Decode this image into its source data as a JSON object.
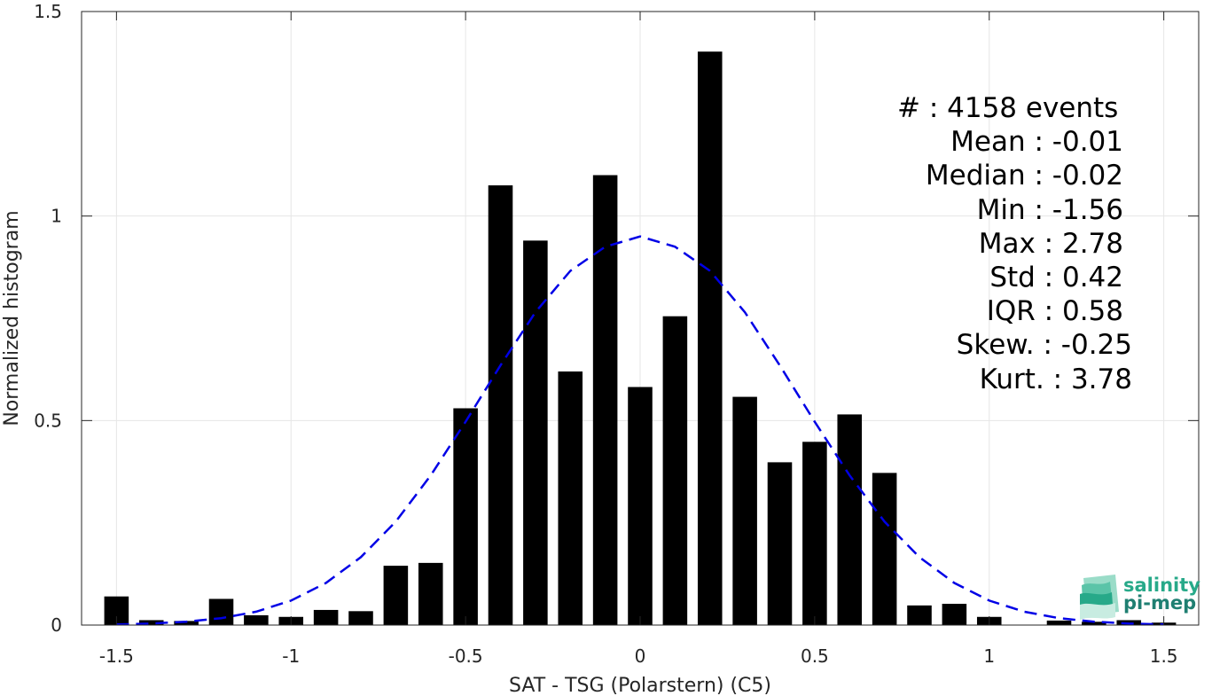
{
  "chart_data": {
    "type": "bar",
    "xlabel": "SAT - TSG (Polarstern) (C5)",
    "ylabel": "Normalized histogram",
    "xlim": [
      -1.6,
      1.6
    ],
    "ylim": [
      0,
      1.5
    ],
    "x_ticks": [
      -1.5,
      -1,
      -0.5,
      0,
      0.5,
      1,
      1.5
    ],
    "x_tick_labels": [
      "-1.5",
      "-1",
      "-0.5",
      "0",
      "0.5",
      "1",
      "1.5"
    ],
    "y_ticks": [
      0,
      0.5,
      1,
      1.5
    ],
    "y_tick_labels": [
      "0",
      "0.5",
      "1",
      "1.5"
    ],
    "grid": true,
    "bar_width": 0.07,
    "bar_color": "#000000",
    "x": [
      -1.5,
      -1.4,
      -1.3,
      -1.2,
      -1.1,
      -1.0,
      -0.9,
      -0.8,
      -0.7,
      -0.6,
      -0.5,
      -0.4,
      -0.3,
      -0.2,
      -0.1,
      0.0,
      0.1,
      0.2,
      0.3,
      0.4,
      0.5,
      0.6,
      0.7,
      0.8,
      0.9,
      1.0,
      1.1,
      1.2,
      1.3,
      1.4,
      1.5
    ],
    "values": [
      0.07,
      0.012,
      0.01,
      0.064,
      0.024,
      0.02,
      0.037,
      0.034,
      0.145,
      0.152,
      0.53,
      1.075,
      0.94,
      0.62,
      1.1,
      0.582,
      0.755,
      1.402,
      0.558,
      0.398,
      0.448,
      0.515,
      0.372,
      0.048,
      0.052,
      0.02,
      0,
      0.011,
      0.008,
      0.012,
      0.006
    ],
    "fit_curve": {
      "style": "dashed",
      "color": "#0000e6",
      "x": [
        -1.5,
        -1.4,
        -1.3,
        -1.2,
        -1.1,
        -1.0,
        -0.9,
        -0.8,
        -0.7,
        -0.6,
        -0.5,
        -0.4,
        -0.3,
        -0.2,
        -0.1,
        0.0,
        0.1,
        0.2,
        0.3,
        0.4,
        0.5,
        0.6,
        0.7,
        0.8,
        0.9,
        1.0,
        1.1,
        1.2,
        1.3,
        1.4,
        1.5
      ],
      "y": [
        0.0016,
        0.0036,
        0.0082,
        0.0169,
        0.0328,
        0.0598,
        0.103,
        0.166,
        0.253,
        0.366,
        0.497,
        0.635,
        0.765,
        0.866,
        0.925,
        0.95,
        0.925,
        0.866,
        0.765,
        0.635,
        0.497,
        0.366,
        0.253,
        0.166,
        0.103,
        0.0598,
        0.0328,
        0.0169,
        0.0082,
        0.0036,
        0.0016
      ]
    },
    "annotations": [
      "#  : 4158 events",
      "Mean : -0.01",
      "Median : -0.02",
      "Min : -1.56",
      "Max : 2.78",
      "Std : 0.42",
      "IQR : 0.58",
      "Skew. : -0.25",
      "Kurt. : 3.78"
    ]
  },
  "logo": {
    "line1": "salinity",
    "line2": "pi-mep",
    "color": "#27a989"
  }
}
